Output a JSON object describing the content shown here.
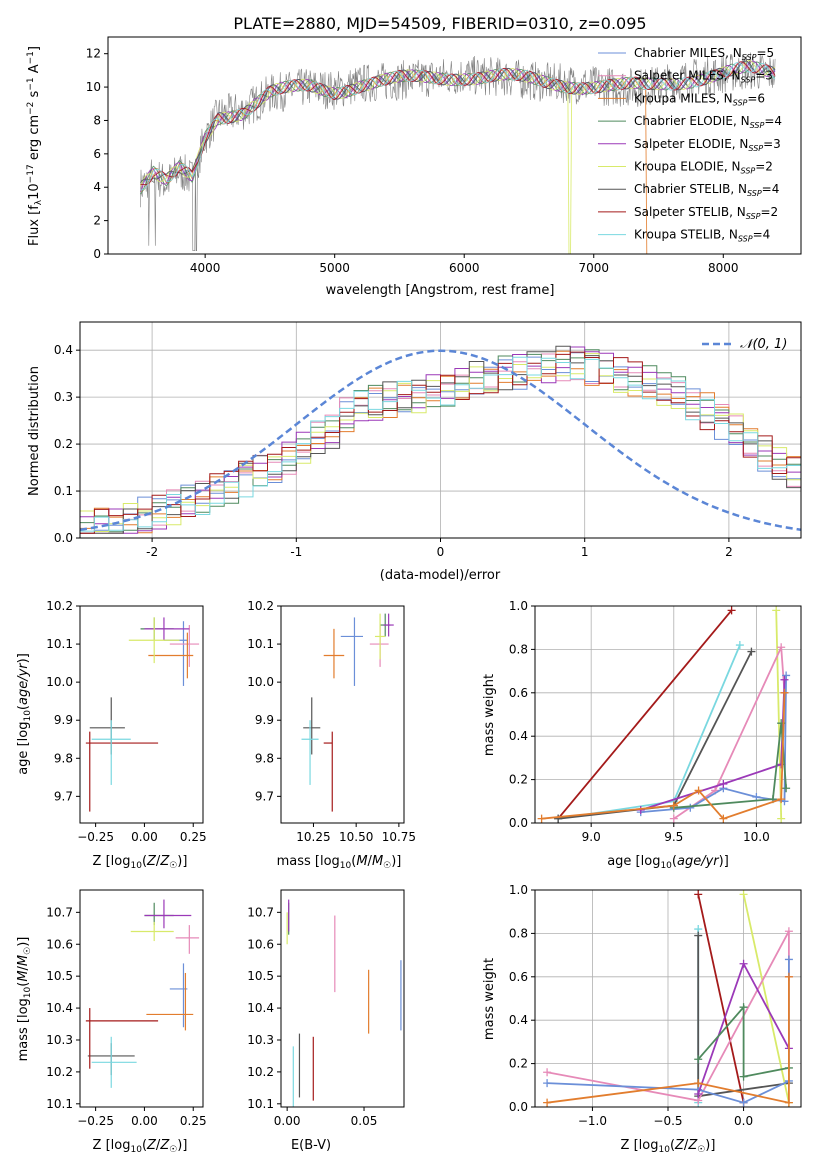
{
  "title": "PLATE=2880, MJD=54509, FIBERID=0310, z=0.095",
  "colors": {
    "Chabrier MILES": "#6b8fd8",
    "Salpeter MILES": "#e68ab8",
    "Kroupa MILES": "#e27d2e",
    "Chabrier ELODIE": "#4f8a5e",
    "Salpeter ELODIE": "#9b39b8",
    "Kroupa ELODIE": "#d8ea6a",
    "Chabrier STELIB": "#555555",
    "Salpeter STELIB": "#a41a1a",
    "Kroupa STELIB": "#7ad8e0",
    "data": "#808080",
    "gauss": "#5b86d6"
  },
  "legend_spectrum": [
    {
      "model": "Chabrier MILES",
      "label": "Chabrier MILES, N",
      "sub": "SSP",
      "n": "=5"
    },
    {
      "model": "Salpeter MILES",
      "label": "Salpeter MILES, N",
      "sub": "SSP",
      "n": "=3"
    },
    {
      "model": "Kroupa MILES",
      "label": "Kroupa MILES, N",
      "sub": "SSP",
      "n": "=6"
    },
    {
      "model": "Chabrier ELODIE",
      "label": "Chabrier ELODIE, N",
      "sub": "SSP",
      "n": "=4"
    },
    {
      "model": "Salpeter ELODIE",
      "label": "Salpeter ELODIE, N",
      "sub": "SSP",
      "n": "=3"
    },
    {
      "model": "Kroupa ELODIE",
      "label": "Kroupa ELODIE, N",
      "sub": "SSP",
      "n": "=2"
    },
    {
      "model": "Chabrier STELIB",
      "label": "Chabrier STELIB, N",
      "sub": "SSP",
      "n": "=4"
    },
    {
      "model": "Salpeter STELIB",
      "label": "Salpeter STELIB, N",
      "sub": "SSP",
      "n": "=2"
    },
    {
      "model": "Kroupa STELIB",
      "label": "Kroupa STELIB, N",
      "sub": "SSP",
      "n": "=4"
    }
  ],
  "chart_data": [
    {
      "id": "spectrum",
      "type": "line",
      "title": "PLATE=2880, MJD=54509, FIBERID=0310, z=0.095",
      "xlabel": "wavelength [Angstrom, rest frame]",
      "ylabel": "Flux [f_λ 10^-17 erg cm^-2 s^-1 A^-1]",
      "xlim": [
        3250,
        8600
      ],
      "ylim": [
        0,
        13
      ],
      "xticks": [
        4000,
        5000,
        6000,
        7000,
        8000
      ],
      "yticks": [
        0,
        2,
        4,
        6,
        8,
        10,
        12
      ],
      "grid": false,
      "legend": "top-right",
      "model_profile": {
        "x": [
          3500,
          3600,
          3700,
          3800,
          3900,
          4000,
          4100,
          4300,
          4500,
          4800,
          5000,
          5200,
          5500,
          5800,
          6000,
          6300,
          6600,
          6800,
          7000,
          7200,
          7400,
          7600,
          7800,
          8000,
          8200,
          8400
        ],
        "y": [
          4.0,
          4.8,
          4.2,
          5.0,
          4.5,
          7.0,
          8.3,
          8.6,
          9.6,
          10.0,
          9.8,
          10.2,
          10.4,
          10.6,
          10.7,
          10.6,
          10.3,
          10.2,
          10.1,
          10.0,
          10.0,
          10.3,
          10.6,
          10.8,
          11.0,
          10.8
        ]
      }
    },
    {
      "id": "residuals",
      "type": "step",
      "xlabel": "(data-model)/error",
      "ylabel": "Normed distribution",
      "xlim": [
        -2.5,
        2.5
      ],
      "ylim": [
        0,
        0.46
      ],
      "xticks": [
        -2,
        -1,
        0,
        1,
        2
      ],
      "yticks": [
        0.0,
        0.1,
        0.2,
        0.3,
        0.4
      ],
      "grid": true,
      "legend": "top-right",
      "gauss_label": "𝒩(0, 1)",
      "bins": {
        "start": -2.5,
        "width": 0.1
      },
      "reference_histogram": [
        0.025,
        0.03,
        0.035,
        0.04,
        0.048,
        0.055,
        0.065,
        0.08,
        0.09,
        0.1,
        0.11,
        0.125,
        0.14,
        0.155,
        0.17,
        0.19,
        0.21,
        0.23,
        0.26,
        0.28,
        0.29,
        0.295,
        0.3,
        0.305,
        0.31,
        0.32,
        0.33,
        0.34,
        0.345,
        0.35,
        0.355,
        0.36,
        0.365,
        0.37,
        0.37,
        0.365,
        0.355,
        0.35,
        0.34,
        0.33,
        0.32,
        0.305,
        0.29,
        0.27,
        0.25,
        0.225,
        0.2,
        0.18,
        0.16,
        0.14
      ]
    },
    {
      "id": "age_vs_Z",
      "type": "scatter",
      "xlabel": "Z [log10(Z/Z☉)]",
      "ylabel": "age [log10(age/yr)]",
      "xlim": [
        -0.33,
        0.3
      ],
      "ylim": [
        9.63,
        10.2
      ],
      "xticks": [
        -0.25,
        0.0,
        0.25
      ],
      "xticklabels": [
        "−0.25",
        "0.00",
        "0.25"
      ],
      "yticks": [
        9.7,
        9.8,
        9.9,
        10.0,
        10.1,
        10.2
      ],
      "points": [
        {
          "model": "Chabrier MILES",
          "x": 0.2,
          "xerr": [
            0.1,
            0.02
          ],
          "y": 10.11,
          "yerr": [
            0.12,
            0.05
          ]
        },
        {
          "model": "Salpeter MILES",
          "x": 0.23,
          "xerr": [
            0.1,
            0.05
          ],
          "y": 10.1,
          "yerr": [
            0.06,
            0.05
          ]
        },
        {
          "model": "Kroupa MILES",
          "x": 0.22,
          "xerr": [
            0.2,
            0.03
          ],
          "y": 10.07,
          "yerr": [
            0.06,
            0.06
          ]
        },
        {
          "model": "Chabrier ELODIE",
          "x": 0.05,
          "xerr": [
            0.07,
            0.1
          ],
          "y": 10.14,
          "yerr": [
            0.03,
            0.03
          ]
        },
        {
          "model": "Salpeter ELODIE",
          "x": 0.1,
          "xerr": [
            0.1,
            0.13
          ],
          "y": 10.14,
          "yerr": [
            0.03,
            0.03
          ]
        },
        {
          "model": "Kroupa ELODIE",
          "x": 0.05,
          "xerr": [
            0.13,
            0.13
          ],
          "y": 10.11,
          "yerr": [
            0.06,
            0.06
          ]
        },
        {
          "model": "Chabrier STELIB",
          "x": -0.17,
          "xerr": [
            0.11,
            0.07
          ],
          "y": 9.88,
          "yerr": [
            0.07,
            0.08
          ]
        },
        {
          "model": "Salpeter STELIB",
          "x": -0.28,
          "xerr": [
            0.02,
            0.35
          ],
          "y": 9.84,
          "yerr": [
            0.18,
            0.03
          ]
        },
        {
          "model": "Kroupa STELIB",
          "x": -0.17,
          "xerr": [
            0.1,
            0.1
          ],
          "y": 9.85,
          "yerr": [
            0.12,
            0.05
          ]
        }
      ]
    },
    {
      "id": "age_vs_mass",
      "type": "scatter",
      "xlabel": "mass [log10(M/M☉)]",
      "ylabel": "",
      "xlim": [
        10.06,
        10.78
      ],
      "ylim": [
        9.63,
        10.2
      ],
      "xticks": [
        10.25,
        10.5,
        10.75
      ],
      "xticklabels": [
        "10.25",
        "10.50",
        "10.75"
      ],
      "yticks": [
        9.7,
        9.8,
        9.9,
        10.0,
        10.1,
        10.2
      ],
      "points": [
        {
          "model": "Chabrier MILES",
          "x": 10.49,
          "xerr": [
            0.08,
            0.05
          ],
          "y": 10.12,
          "yerr": [
            0.13,
            0.05
          ]
        },
        {
          "model": "Salpeter MILES",
          "x": 10.64,
          "xerr": [
            0.06,
            0.05
          ],
          "y": 10.1,
          "yerr": [
            0.06,
            0.05
          ]
        },
        {
          "model": "Kroupa MILES",
          "x": 10.37,
          "xerr": [
            0.06,
            0.06
          ],
          "y": 10.07,
          "yerr": [
            0.06,
            0.07
          ]
        },
        {
          "model": "Chabrier ELODIE",
          "x": 10.67,
          "xerr": [
            0.03,
            0.03
          ],
          "y": 10.15,
          "yerr": [
            0.03,
            0.03
          ]
        },
        {
          "model": "Salpeter ELODIE",
          "x": 10.69,
          "xerr": [
            0.03,
            0.03
          ],
          "y": 10.15,
          "yerr": [
            0.03,
            0.03
          ]
        },
        {
          "model": "Kroupa ELODIE",
          "x": 10.64,
          "xerr": [
            0.03,
            0.03
          ],
          "y": 10.12,
          "yerr": [
            0.06,
            0.06
          ]
        },
        {
          "model": "Chabrier STELIB",
          "x": 10.24,
          "xerr": [
            0.05,
            0.05
          ],
          "y": 9.88,
          "yerr": [
            0.07,
            0.08
          ]
        },
        {
          "model": "Salpeter STELIB",
          "x": 10.36,
          "xerr": [
            0.05,
            0.0
          ],
          "y": 9.84,
          "yerr": [
            0.18,
            0.03
          ]
        },
        {
          "model": "Kroupa STELIB",
          "x": 10.23,
          "xerr": [
            0.05,
            0.05
          ],
          "y": 9.85,
          "yerr": [
            0.12,
            0.05
          ]
        }
      ]
    },
    {
      "id": "weight_vs_age",
      "type": "line",
      "xlabel": "age [log10(age/yr)]",
      "ylabel": "mass weight",
      "xlim": [
        8.66,
        10.27
      ],
      "ylim": [
        0,
        1
      ],
      "xticks": [
        9.0,
        9.5,
        10.0
      ],
      "xticklabels": [
        "9.0",
        "9.5",
        "10.0"
      ],
      "yticks": [
        0.0,
        0.2,
        0.4,
        0.6,
        0.8,
        1.0
      ],
      "grid": true,
      "series": [
        {
          "model": "Salpeter STELIB",
          "x": [
            8.8,
            9.85
          ],
          "y": [
            0.02,
            0.98
          ]
        },
        {
          "model": "Kroupa STELIB",
          "x": [
            8.8,
            9.5,
            9.9
          ],
          "y": [
            0.02,
            0.1,
            0.82
          ]
        },
        {
          "model": "Chabrier STELIB",
          "x": [
            8.8,
            9.5,
            9.97
          ],
          "y": [
            0.02,
            0.08,
            0.79
          ]
        },
        {
          "model": "Kroupa ELODIE",
          "x": [
            10.12,
            10.15
          ],
          "y": [
            0.98,
            0.02
          ]
        },
        {
          "model": "Salpeter MILES",
          "x": [
            9.5,
            9.75,
            10.15,
            10.17
          ],
          "y": [
            0.02,
            0.15,
            0.81,
            0.6
          ]
        },
        {
          "model": "Chabrier MILES",
          "x": [
            9.3,
            9.6,
            9.8,
            10.0,
            10.17,
            10.18
          ],
          "y": [
            0.05,
            0.07,
            0.16,
            0.12,
            0.1,
            0.68
          ]
        },
        {
          "model": "Salpeter ELODIE",
          "x": [
            9.3,
            9.8,
            10.15,
            10.17
          ],
          "y": [
            0.06,
            0.18,
            0.27,
            0.66
          ]
        },
        {
          "model": "Chabrier ELODIE",
          "x": [
            9.5,
            10.1,
            10.15,
            10.18
          ],
          "y": [
            0.07,
            0.11,
            0.46,
            0.16
          ]
        },
        {
          "model": "Kroupa MILES",
          "x": [
            8.7,
            9.5,
            9.65,
            9.8,
            10.15,
            10.17
          ],
          "y": [
            0.02,
            0.08,
            0.15,
            0.02,
            0.11,
            0.6
          ]
        }
      ]
    },
    {
      "id": "mass_vs_Z",
      "type": "scatter",
      "xlabel": "Z [log10(Z/Z☉)]",
      "ylabel": "mass [log10(M/M☉)]",
      "xlim": [
        -0.33,
        0.3
      ],
      "ylim": [
        10.09,
        10.77
      ],
      "xticks": [
        -0.25,
        0.0,
        0.25
      ],
      "xticklabels": [
        "−0.25",
        "0.00",
        "0.25"
      ],
      "yticks": [
        10.1,
        10.2,
        10.3,
        10.4,
        10.5,
        10.6,
        10.7
      ],
      "points": [
        {
          "model": "Chabrier MILES",
          "x": 0.2,
          "xerr": [
            0.07,
            0.02
          ],
          "y": 10.46,
          "yerr": [
            0.12,
            0.08
          ]
        },
        {
          "model": "Salpeter MILES",
          "x": 0.23,
          "xerr": [
            0.07,
            0.05
          ],
          "y": 10.62,
          "yerr": [
            0.05,
            0.04
          ]
        },
        {
          "model": "Kroupa MILES",
          "x": 0.21,
          "xerr": [
            0.2,
            0.04
          ],
          "y": 10.38,
          "yerr": [
            0.05,
            0.13
          ]
        },
        {
          "model": "Chabrier ELODIE",
          "x": 0.05,
          "xerr": [
            0.05,
            0.1
          ],
          "y": 10.69,
          "yerr": [
            0.03,
            0.04
          ]
        },
        {
          "model": "Salpeter ELODIE",
          "x": 0.1,
          "xerr": [
            0.1,
            0.14
          ],
          "y": 10.69,
          "yerr": [
            0.04,
            0.05
          ]
        },
        {
          "model": "Kroupa ELODIE",
          "x": 0.05,
          "xerr": [
            0.12,
            0.1
          ],
          "y": 10.64,
          "yerr": [
            0.03,
            0.03
          ]
        },
        {
          "model": "Chabrier STELIB",
          "x": -0.17,
          "xerr": [
            0.12,
            0.12
          ],
          "y": 10.25,
          "yerr": [
            0.06,
            0.04
          ]
        },
        {
          "model": "Salpeter STELIB",
          "x": -0.28,
          "xerr": [
            0.02,
            0.35
          ],
          "y": 10.36,
          "yerr": [
            0.15,
            0.04
          ]
        },
        {
          "model": "Kroupa STELIB",
          "x": -0.17,
          "xerr": [
            0.1,
            0.13
          ],
          "y": 10.23,
          "yerr": [
            0.08,
            0.08
          ]
        }
      ]
    },
    {
      "id": "mass_vs_EBV",
      "type": "scatter",
      "xlabel": "E(B-V)",
      "ylabel": "",
      "xlim": [
        -0.004,
        0.076
      ],
      "ylim": [
        10.09,
        10.77
      ],
      "xticks": [
        0.0,
        0.05
      ],
      "xticklabels": [
        "0.00",
        "0.05"
      ],
      "yticks": [
        10.1,
        10.2,
        10.3,
        10.4,
        10.5,
        10.6,
        10.7
      ],
      "points": [
        {
          "model": "Chabrier MILES",
          "x": 0.074,
          "y": 10.44,
          "yerr": [
            0.11,
            0.11
          ]
        },
        {
          "model": "Salpeter MILES",
          "x": 0.031,
          "y": 10.57,
          "yerr": [
            0.12,
            0.12
          ]
        },
        {
          "model": "Kroupa MILES",
          "x": 0.053,
          "y": 10.42,
          "yerr": [
            0.1,
            0.1
          ]
        },
        {
          "model": "Chabrier ELODIE",
          "x": 0.001,
          "y": 10.68,
          "yerr": [
            0.05,
            0.05
          ]
        },
        {
          "model": "Salpeter ELODIE",
          "x": 0.001,
          "y": 10.69,
          "yerr": [
            0.05,
            0.05
          ]
        },
        {
          "model": "Kroupa ELODIE",
          "x": 0.0,
          "y": 10.65,
          "yerr": [
            0.05,
            0.05
          ]
        },
        {
          "model": "Chabrier STELIB",
          "x": 0.008,
          "y": 10.22,
          "yerr": [
            0.1,
            0.1
          ]
        },
        {
          "model": "Salpeter STELIB",
          "x": 0.017,
          "y": 10.21,
          "yerr": [
            0.1,
            0.1
          ]
        },
        {
          "model": "Kroupa STELIB",
          "x": 0.004,
          "y": 10.18,
          "yerr": [
            0.1,
            0.1
          ]
        }
      ]
    },
    {
      "id": "weight_vs_Z",
      "type": "line",
      "xlabel": "Z [log10(Z/Z☉)]",
      "ylabel": "mass weight",
      "xlim": [
        -1.38,
        0.38
      ],
      "ylim": [
        0,
        1
      ],
      "xticks": [
        -1.0,
        -0.5,
        0.0
      ],
      "xticklabels": [
        "−1.0",
        "−0.5",
        "0.0"
      ],
      "yticks": [
        0.0,
        0.2,
        0.4,
        0.6,
        0.8,
        1.0
      ],
      "grid": true,
      "series": [
        {
          "model": "Salpeter STELIB",
          "x": [
            -0.3,
            0.0
          ],
          "y": [
            0.98,
            0.02
          ]
        },
        {
          "model": "Kroupa STELIB",
          "x": [
            -0.3,
            -0.3
          ],
          "y": [
            0.82,
            0.02
          ]
        },
        {
          "model": "Chabrier STELIB",
          "x": [
            -0.3,
            -0.3,
            0.3
          ],
          "y": [
            0.79,
            0.05,
            0.11
          ]
        },
        {
          "model": "Kroupa ELODIE",
          "x": [
            0.0,
            0.3
          ],
          "y": [
            0.98,
            0.02
          ]
        },
        {
          "model": "Salpeter MILES",
          "x": [
            -1.3,
            -0.3,
            0.3,
            0.3
          ],
          "y": [
            0.16,
            0.03,
            0.81,
            0.6
          ]
        },
        {
          "model": "Chabrier MILES",
          "x": [
            -1.3,
            -0.3,
            0.0,
            0.3,
            0.3
          ],
          "y": [
            0.11,
            0.08,
            0.02,
            0.12,
            0.68
          ]
        },
        {
          "model": "Salpeter ELODIE",
          "x": [
            -0.3,
            0.0,
            0.3
          ],
          "y": [
            0.06,
            0.66,
            0.27
          ]
        },
        {
          "model": "Chabrier ELODIE",
          "x": [
            -0.3,
            0.0,
            0.0,
            0.3
          ],
          "y": [
            0.22,
            0.46,
            0.14,
            0.18
          ]
        },
        {
          "model": "Kroupa MILES",
          "x": [
            -1.3,
            -0.3,
            0.3,
            0.3
          ],
          "y": [
            0.02,
            0.11,
            0.02,
            0.6
          ]
        }
      ]
    }
  ]
}
